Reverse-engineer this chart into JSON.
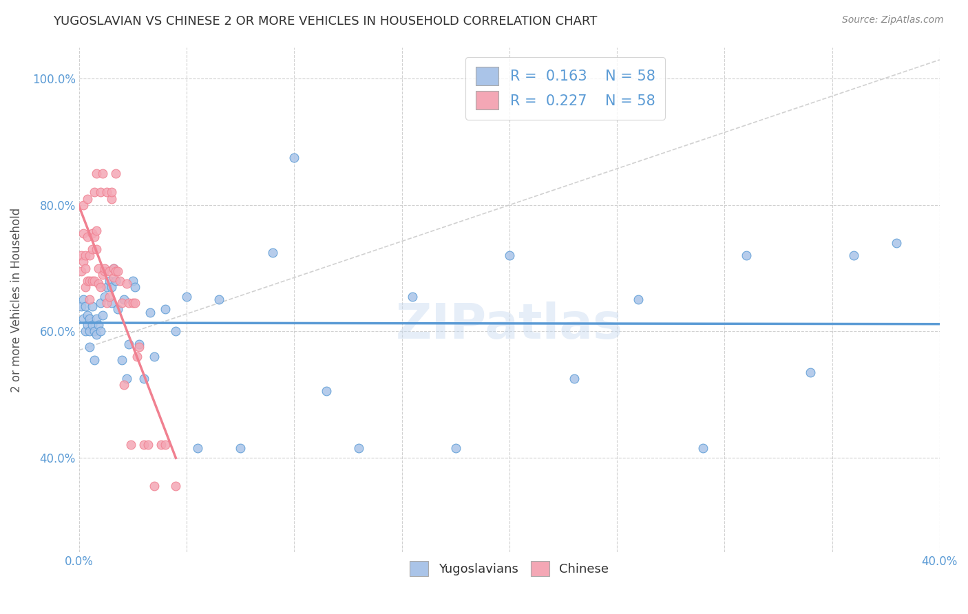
{
  "title": "YUGOSLAVIAN VS CHINESE 2 OR MORE VEHICLES IN HOUSEHOLD CORRELATION CHART",
  "source": "Source: ZipAtlas.com",
  "ylabel": "2 or more Vehicles in Household",
  "xlim": [
    0.0,
    0.4
  ],
  "ylim": [
    0.25,
    1.05
  ],
  "yticks": [
    0.4,
    0.6,
    0.8,
    1.0
  ],
  "ytick_labels": [
    "40.0%",
    "60.0%",
    "80.0%",
    "100.0%"
  ],
  "xticks": [
    0.0,
    0.05,
    0.1,
    0.15,
    0.2,
    0.25,
    0.3,
    0.35,
    0.4
  ],
  "xtick_labels": [
    "0.0%",
    "",
    "",
    "",
    "",
    "",
    "",
    "",
    "40.0%"
  ],
  "watermark": "ZIPatlas",
  "bg_color": "#ffffff",
  "grid_color": "#cccccc",
  "yug_color": "#aac4e8",
  "chi_color": "#f4a7b5",
  "yug_line_color": "#5b9bd5",
  "chi_line_color": "#f08090",
  "diag_line_color": "#cccccc",
  "title_color": "#333333",
  "axis_color": "#5b9bd5",
  "yug_scatter_x": [
    0.001,
    0.002,
    0.002,
    0.003,
    0.003,
    0.004,
    0.004,
    0.005,
    0.005,
    0.005,
    0.006,
    0.006,
    0.007,
    0.007,
    0.008,
    0.008,
    0.009,
    0.01,
    0.01,
    0.011,
    0.012,
    0.013,
    0.014,
    0.015,
    0.015,
    0.016,
    0.017,
    0.018,
    0.02,
    0.021,
    0.022,
    0.023,
    0.025,
    0.026,
    0.028,
    0.03,
    0.033,
    0.035,
    0.04,
    0.045,
    0.05,
    0.055,
    0.065,
    0.075,
    0.09,
    0.1,
    0.115,
    0.13,
    0.155,
    0.175,
    0.2,
    0.23,
    0.26,
    0.29,
    0.31,
    0.34,
    0.36,
    0.38
  ],
  "yug_scatter_y": [
    0.64,
    0.65,
    0.62,
    0.64,
    0.6,
    0.61,
    0.625,
    0.6,
    0.62,
    0.575,
    0.61,
    0.64,
    0.6,
    0.555,
    0.595,
    0.62,
    0.61,
    0.645,
    0.6,
    0.625,
    0.655,
    0.67,
    0.68,
    0.67,
    0.645,
    0.7,
    0.68,
    0.635,
    0.555,
    0.65,
    0.525,
    0.58,
    0.68,
    0.67,
    0.58,
    0.525,
    0.63,
    0.56,
    0.635,
    0.6,
    0.655,
    0.415,
    0.65,
    0.415,
    0.725,
    0.875,
    0.505,
    0.415,
    0.655,
    0.415,
    0.72,
    0.525,
    0.65,
    0.415,
    0.72,
    0.535,
    0.72,
    0.74
  ],
  "chi_scatter_x": [
    0.001,
    0.001,
    0.002,
    0.002,
    0.002,
    0.003,
    0.003,
    0.003,
    0.004,
    0.004,
    0.004,
    0.005,
    0.005,
    0.005,
    0.006,
    0.006,
    0.006,
    0.007,
    0.007,
    0.007,
    0.008,
    0.008,
    0.008,
    0.009,
    0.009,
    0.01,
    0.01,
    0.011,
    0.011,
    0.012,
    0.012,
    0.013,
    0.013,
    0.014,
    0.014,
    0.015,
    0.015,
    0.016,
    0.016,
    0.017,
    0.017,
    0.018,
    0.019,
    0.02,
    0.021,
    0.022,
    0.023,
    0.024,
    0.025,
    0.026,
    0.027,
    0.028,
    0.03,
    0.032,
    0.035,
    0.038,
    0.04,
    0.045
  ],
  "chi_scatter_y": [
    0.695,
    0.72,
    0.755,
    0.71,
    0.8,
    0.7,
    0.67,
    0.72,
    0.75,
    0.68,
    0.81,
    0.65,
    0.68,
    0.72,
    0.755,
    0.68,
    0.73,
    0.75,
    0.68,
    0.82,
    0.73,
    0.76,
    0.85,
    0.7,
    0.675,
    0.67,
    0.82,
    0.69,
    0.85,
    0.695,
    0.7,
    0.645,
    0.82,
    0.655,
    0.695,
    0.81,
    0.82,
    0.7,
    0.685,
    0.85,
    0.695,
    0.695,
    0.68,
    0.645,
    0.515,
    0.675,
    0.645,
    0.42,
    0.645,
    0.645,
    0.56,
    0.575,
    0.42,
    0.42,
    0.355,
    0.42,
    0.42,
    0.355
  ]
}
